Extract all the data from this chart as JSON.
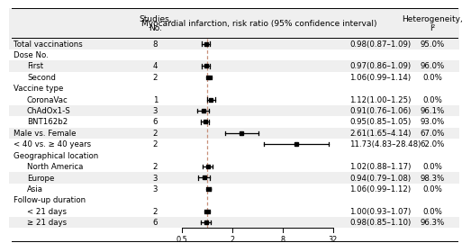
{
  "rows": [
    {
      "label": "Total vaccinations",
      "indent": 0,
      "n": "8",
      "rr": 0.98,
      "ci_lo": 0.87,
      "ci_hi": 1.09,
      "rr_text": "0.98(0.87–1.09)",
      "het": "95.0%",
      "is_subheader": false
    },
    {
      "label": "Dose No.",
      "indent": 0,
      "n": "",
      "rr": null,
      "ci_lo": null,
      "ci_hi": null,
      "rr_text": "",
      "het": "",
      "is_subheader": true
    },
    {
      "label": "First",
      "indent": 1,
      "n": "4",
      "rr": 0.97,
      "ci_lo": 0.86,
      "ci_hi": 1.09,
      "rr_text": "0.97(0.86–1.09)",
      "het": "96.0%",
      "is_subheader": false
    },
    {
      "label": "Second",
      "indent": 1,
      "n": "2",
      "rr": 1.06,
      "ci_lo": 0.99,
      "ci_hi": 1.14,
      "rr_text": "1.06(0.99–1.14)",
      "het": "0.0%",
      "is_subheader": false
    },
    {
      "label": "Vaccine type",
      "indent": 0,
      "n": "",
      "rr": null,
      "ci_lo": null,
      "ci_hi": null,
      "rr_text": "",
      "het": "",
      "is_subheader": true
    },
    {
      "label": "CoronaVac",
      "indent": 1,
      "n": "1",
      "rr": 1.12,
      "ci_lo": 1.0,
      "ci_hi": 1.25,
      "rr_text": "1.12(1.00–1.25)",
      "het": "0.0%",
      "is_subheader": false
    },
    {
      "label": "ChAdOx1-S",
      "indent": 1,
      "n": "3",
      "rr": 0.91,
      "ci_lo": 0.76,
      "ci_hi": 1.06,
      "rr_text": "0.91(0.76–1.06)",
      "het": "96.1%",
      "is_subheader": false
    },
    {
      "label": "BNT162b2",
      "indent": 1,
      "n": "6",
      "rr": 0.95,
      "ci_lo": 0.85,
      "ci_hi": 1.05,
      "rr_text": "0.95(0.85–1.05)",
      "het": "93.0%",
      "is_subheader": false
    },
    {
      "label": "Male vs. Female",
      "indent": 0,
      "n": "2",
      "rr": 2.61,
      "ci_lo": 1.65,
      "ci_hi": 4.14,
      "rr_text": "2.61(1.65–4.14)",
      "het": "67.0%",
      "is_subheader": false
    },
    {
      "label": "< 40 vs. ≥ 40 years",
      "indent": 0,
      "n": "2",
      "rr": 11.73,
      "ci_lo": 4.83,
      "ci_hi": 28.48,
      "rr_text": "11.73(4.83–28.48)",
      "het": "62.0%",
      "is_subheader": false
    },
    {
      "label": "Geographical location",
      "indent": 0,
      "n": "",
      "rr": null,
      "ci_lo": null,
      "ci_hi": null,
      "rr_text": "",
      "het": "",
      "is_subheader": true
    },
    {
      "label": "North America",
      "indent": 1,
      "n": "2",
      "rr": 1.02,
      "ci_lo": 0.88,
      "ci_hi": 1.17,
      "rr_text": "1.02(0.88–1.17)",
      "het": "0.0%",
      "is_subheader": false
    },
    {
      "label": "Europe",
      "indent": 1,
      "n": "3",
      "rr": 0.94,
      "ci_lo": 0.79,
      "ci_hi": 1.08,
      "rr_text": "0.94(0.79–1.08)",
      "het": "98.3%",
      "is_subheader": false
    },
    {
      "label": "Asia",
      "indent": 1,
      "n": "3",
      "rr": 1.06,
      "ci_lo": 0.99,
      "ci_hi": 1.12,
      "rr_text": "1.06(0.99–1.12)",
      "het": "0.0%",
      "is_subheader": false
    },
    {
      "label": "Follow-up duration",
      "indent": 0,
      "n": "",
      "rr": null,
      "ci_lo": null,
      "ci_hi": null,
      "rr_text": "",
      "het": "",
      "is_subheader": true
    },
    {
      "label": "< 21 days",
      "indent": 1,
      "n": "2",
      "rr": 1.0,
      "ci_lo": 0.93,
      "ci_hi": 1.07,
      "rr_text": "1.00(0.93–1.07)",
      "het": "0.0%",
      "is_subheader": false
    },
    {
      "label": "≥ 21 days",
      "indent": 1,
      "n": "6",
      "rr": 0.98,
      "ci_lo": 0.85,
      "ci_hi": 1.1,
      "rr_text": "0.98(0.85–1.10)",
      "het": "96.3%",
      "is_subheader": false
    }
  ],
  "col_header_label": "Studies,\nNo.",
  "col_header_rr": "Myocardial infarction, risk ratio (95% confidence interval)",
  "col_header_het": "Heterogeneity,\nI²",
  "x_ticks": [
    0.5,
    2,
    8,
    32
  ],
  "log_min_val": 0.35,
  "log_max_val": 50.0,
  "ref_line_val": 1.0,
  "bg_color_light": "#efefef",
  "bg_color_white": "#ffffff",
  "ref_line_color": "#c8907a",
  "font_size": 6.2,
  "header_font_size": 6.5
}
